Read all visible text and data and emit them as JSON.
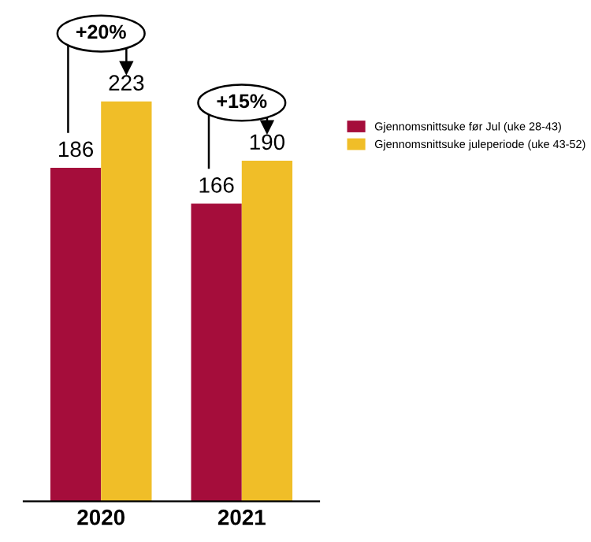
{
  "chart_data": {
    "type": "bar",
    "categories": [
      "2020",
      "2021"
    ],
    "series": [
      {
        "name": "Gjennomsnittsuke før Jul (uke 28-43)",
        "color": "#a50d3b",
        "values": [
          186,
          166
        ]
      },
      {
        "name": "Gjennomsnittsuke juleperiode (uke 43-52)",
        "color": "#f0be28",
        "values": [
          223,
          190
        ]
      }
    ],
    "data_labels": true,
    "legend": "right",
    "grid": false,
    "annotations": [
      "+20%",
      "+15%"
    ]
  }
}
